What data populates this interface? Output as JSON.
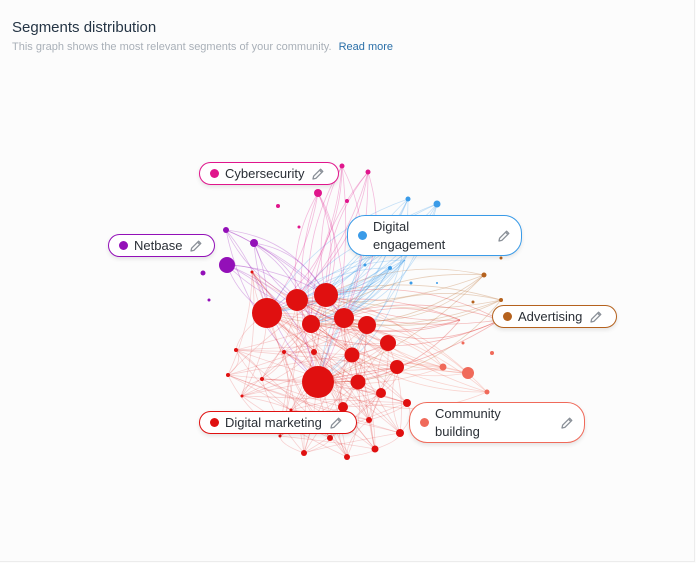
{
  "header": {
    "title": "Segments distribution",
    "subtitle": "This graph shows the most relevant segments of your community.",
    "read_more": "Read more"
  },
  "segments": [
    {
      "id": "cybersecurity",
      "label": "Cybersecurity",
      "color": "#e0168c"
    },
    {
      "id": "netbase",
      "label": "Netbase",
      "color": "#9310b8"
    },
    {
      "id": "digital-engagement",
      "label": "Digital engagement",
      "color": "#3a9be8"
    },
    {
      "id": "advertising",
      "label": "Advertising",
      "color": "#b5621e"
    },
    {
      "id": "digital-marketing",
      "label": "Digital marketing",
      "color": "#e01010"
    },
    {
      "id": "community-building",
      "label": "Community building",
      "color": "#f06a5a"
    }
  ],
  "icons": {
    "edit": "pencil-icon"
  }
}
